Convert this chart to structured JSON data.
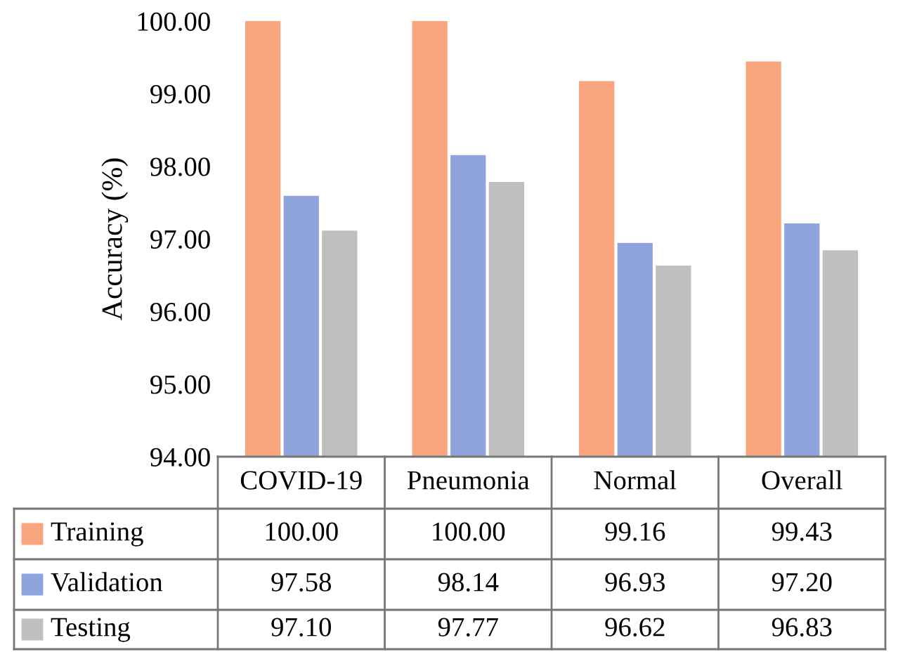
{
  "chart_data": {
    "type": "bar",
    "ylabel": "Accuracy (%)",
    "categories": [
      "COVID-19",
      "Pneumonia",
      "Normal",
      "Overall"
    ],
    "series": [
      {
        "name": "Training",
        "color": "#f9a67e",
        "values": [
          100.0,
          100.0,
          99.16,
          99.43
        ],
        "value_labels": [
          "100.00",
          "100.00",
          "99.16",
          "99.43"
        ]
      },
      {
        "name": "Validation",
        "color": "#8fa4dc",
        "values": [
          97.58,
          98.14,
          96.93,
          97.2
        ],
        "value_labels": [
          "97.58",
          "98.14",
          "96.93",
          "97.20"
        ]
      },
      {
        "name": "Testing",
        "color": "#bfbfbf",
        "values": [
          97.1,
          97.77,
          96.62,
          96.83
        ],
        "value_labels": [
          "97.10",
          "97.77",
          "96.62",
          "96.83"
        ]
      }
    ],
    "ylim": [
      94,
      100
    ],
    "yticks": [
      {
        "value": 94,
        "label": "94.00"
      },
      {
        "value": 95,
        "label": "95.00"
      },
      {
        "value": 96,
        "label": "96.00"
      },
      {
        "value": 97,
        "label": "97.00"
      },
      {
        "value": 98,
        "label": "98.00"
      },
      {
        "value": 99,
        "label": "99.00"
      },
      {
        "value": 100,
        "label": "100.00"
      }
    ],
    "grid": false,
    "legend": "bottom"
  }
}
